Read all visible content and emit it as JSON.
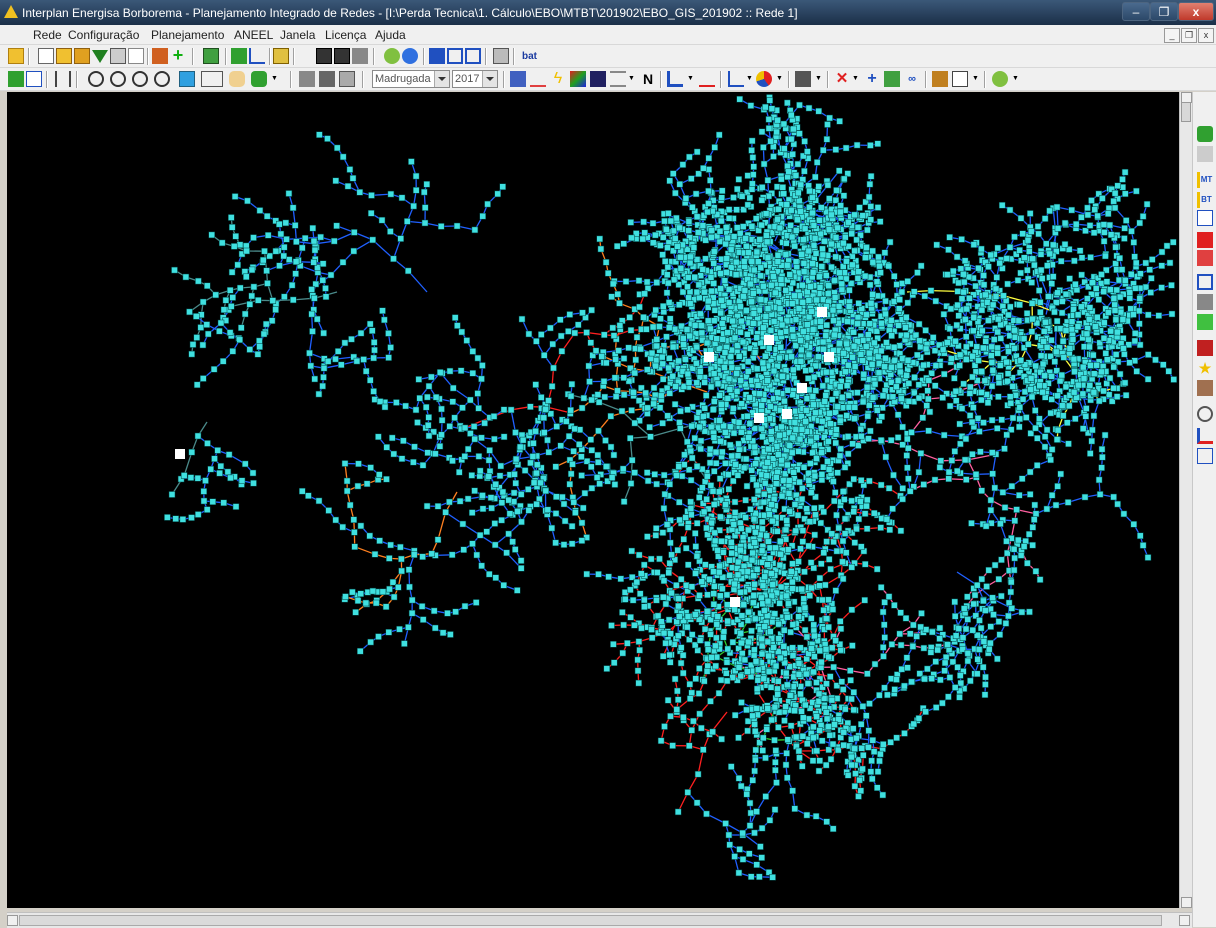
{
  "window": {
    "title": "Interplan Energisa Borborema - Planejamento Integrado de Redes - [I:\\Perda Tecnica\\1. Cálculo\\EBO\\MTBT\\201902\\EBO_GIS_201902 :: Rede 1]"
  },
  "menu": {
    "items": [
      "Rede",
      "Configuração",
      "Planejamento",
      "ANEEL",
      "Janela",
      "Licença",
      "Ajuda"
    ]
  },
  "toolbar2": {
    "period_value": "Madrugada",
    "year_value": "2017",
    "n_label": "N"
  },
  "toolbar1": {
    "bat_label": "bat"
  },
  "sidebar": {
    "mt_label": "MT",
    "bt_label": "BT"
  },
  "colors": {
    "canvas_bg": "#000000",
    "node": "#40e0e0",
    "substation": "#ffffff",
    "line_blue": "#2060ff",
    "line_gray": "#4a8a8a",
    "line_orange": "#ff8020",
    "line_red": "#ff2020",
    "line_pink": "#ff60a0",
    "line_green": "#30d030",
    "line_yellow": "#ffff40"
  }
}
